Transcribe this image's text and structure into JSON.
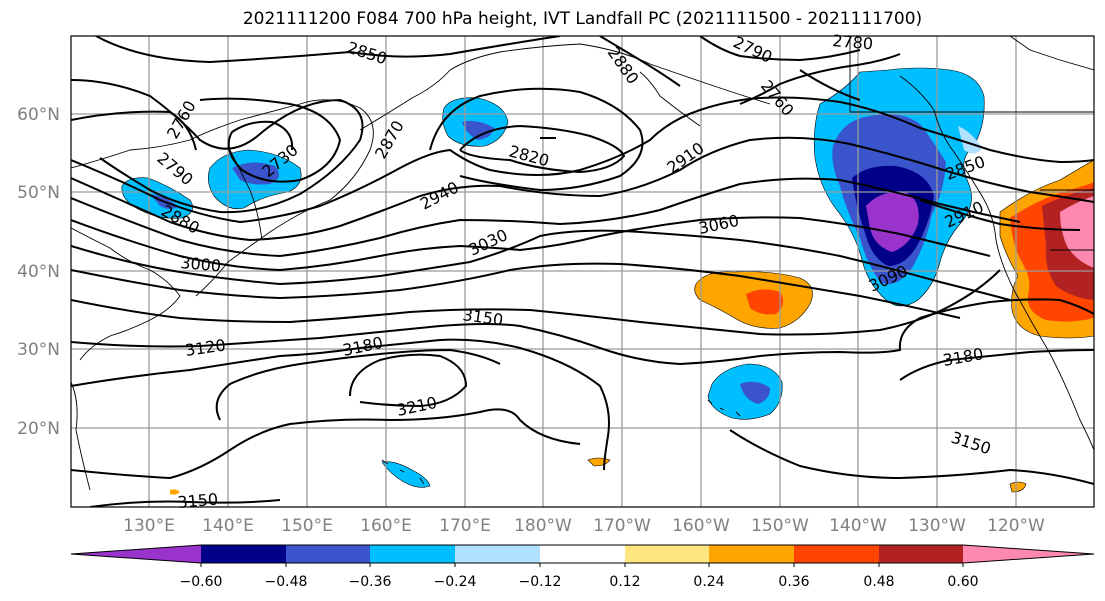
{
  "title": "2021111200 F084 700 hPa height, IVT Landfall PC (2021111500 - 2021111700)",
  "lat_labels": [
    "60°N",
    "50°N",
    "40°N",
    "30°N",
    "20°N"
  ],
  "lon_labels": [
    "130°E",
    "140°E",
    "150°E",
    "160°E",
    "170°E",
    "180°W",
    "170°W",
    "160°W",
    "150°W",
    "140°W",
    "130°W",
    "120°W"
  ],
  "contour_labels": [
    "2850",
    "2880",
    "2790",
    "2760",
    "2780",
    "2760",
    "2790",
    "2730",
    "2880",
    "2870",
    "2820",
    "2910",
    "2940",
    "2850",
    "2910",
    "3030",
    "3060",
    "3000",
    "3090",
    "3150",
    "3120",
    "3180",
    "3210",
    "3180",
    "3150",
    "3150"
  ],
  "colorbar": {
    "ticks": [
      "−0.60",
      "−0.48",
      "−0.36",
      "−0.24",
      "−0.12",
      "0.12",
      "0.24",
      "0.36",
      "0.48",
      "0.60"
    ],
    "colors": [
      "#9933cc",
      "#000088",
      "#3a55cc",
      "#00bfff",
      "#b0e2ff",
      "#ffffff",
      "#ffe680",
      "#ffa500",
      "#ff4500",
      "#b22222",
      "#ff88b0"
    ]
  }
}
